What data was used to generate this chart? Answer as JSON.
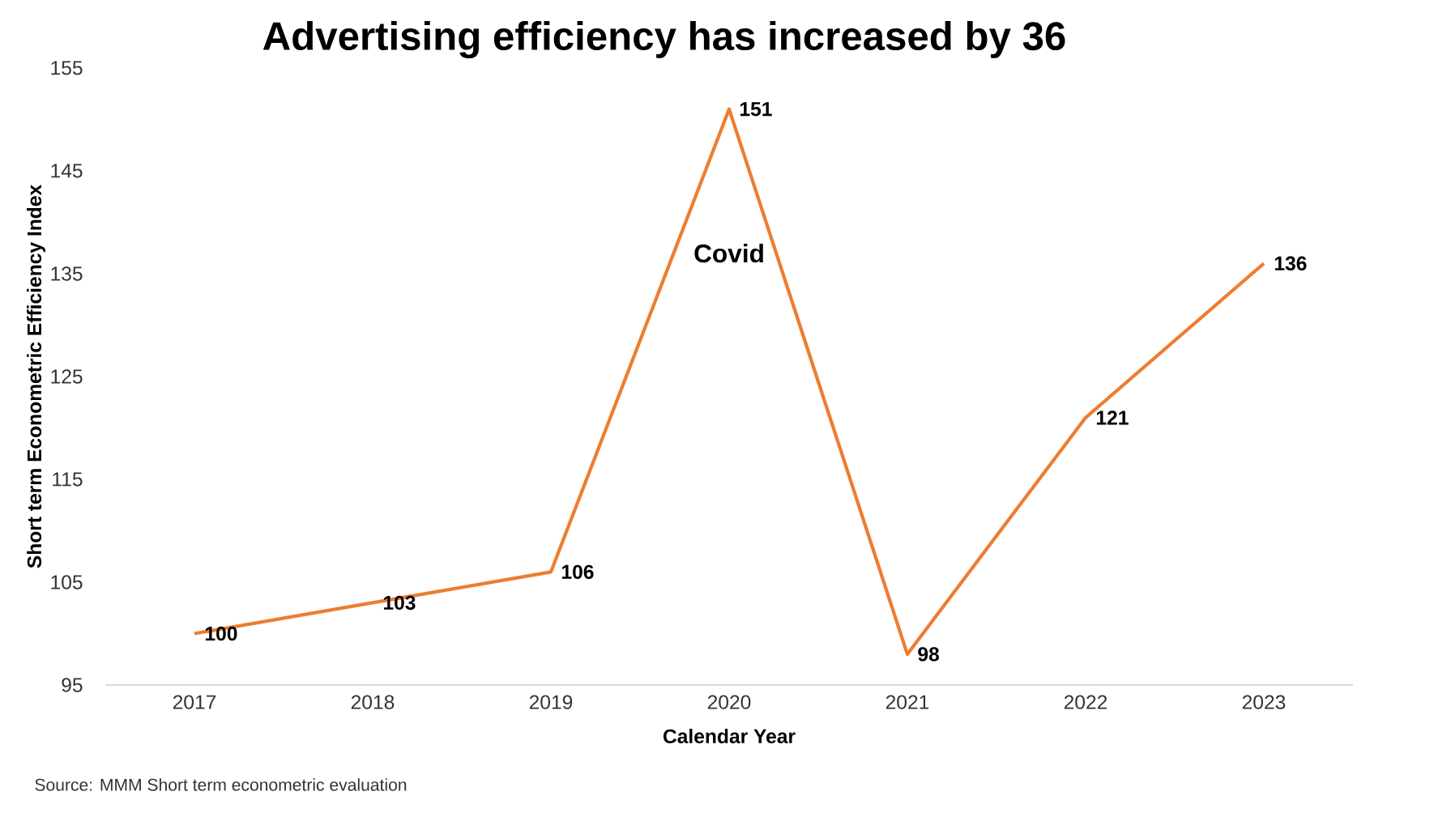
{
  "chart_data": {
    "type": "line",
    "title": "Advertising efficiency has increased by 36",
    "xlabel": "Calendar Year",
    "ylabel": "Short term Econometric Efficiency Index",
    "categories": [
      "2017",
      "2018",
      "2019",
      "2020",
      "2021",
      "2022",
      "2023"
    ],
    "values": [
      100,
      103,
      106,
      151,
      98,
      121,
      136
    ],
    "color": "#ed7d31",
    "ylim": [
      95,
      155
    ],
    "yticks": [
      95,
      105,
      115,
      125,
      135,
      145,
      155
    ],
    "data_labels": true,
    "grid": false,
    "marker": "none",
    "line_style": "solid",
    "annotations": [
      "Covid",
      "Source: MMM Short term econometric evaluation"
    ]
  }
}
